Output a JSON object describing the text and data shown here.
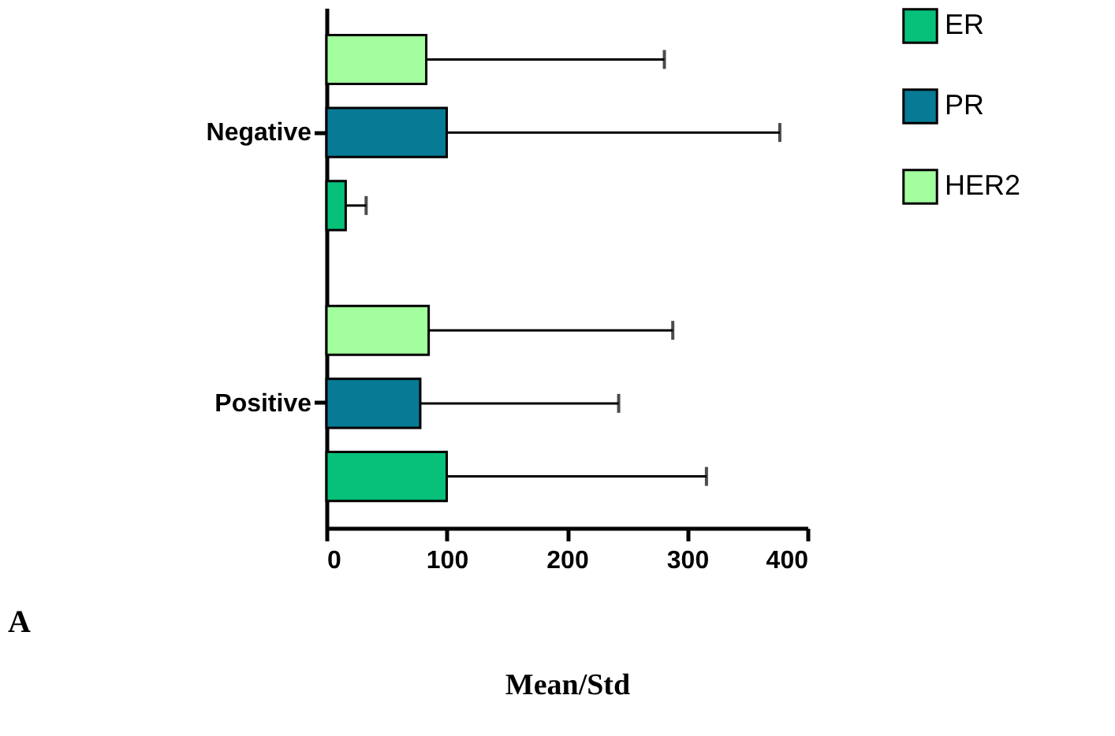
{
  "chart_data": {
    "type": "bar",
    "orientation": "horizontal",
    "categories": [
      "Negative",
      "Positive"
    ],
    "series": [
      {
        "name": "ER",
        "color": "#07c07a",
        "values": [
          16,
          100
        ],
        "errors": [
          [
            16,
            33
          ],
          [
            100,
            316
          ]
        ]
      },
      {
        "name": "PR",
        "color": "#077a95",
        "values": [
          100,
          78
        ],
        "errors": [
          [
            100,
            377
          ],
          [
            78,
            243
          ]
        ]
      },
      {
        "name": "HER2",
        "color": "#a3ff9e",
        "values": [
          83,
          85
        ],
        "errors": [
          [
            83,
            281
          ],
          [
            85,
            288
          ]
        ]
      }
    ],
    "xlim": [
      0,
      400
    ],
    "xticks": [
      0,
      100,
      200,
      300,
      400
    ],
    "xlabel": "Mean/Std",
    "annotations": [
      "A"
    ],
    "legend": "top right",
    "grid": false
  }
}
